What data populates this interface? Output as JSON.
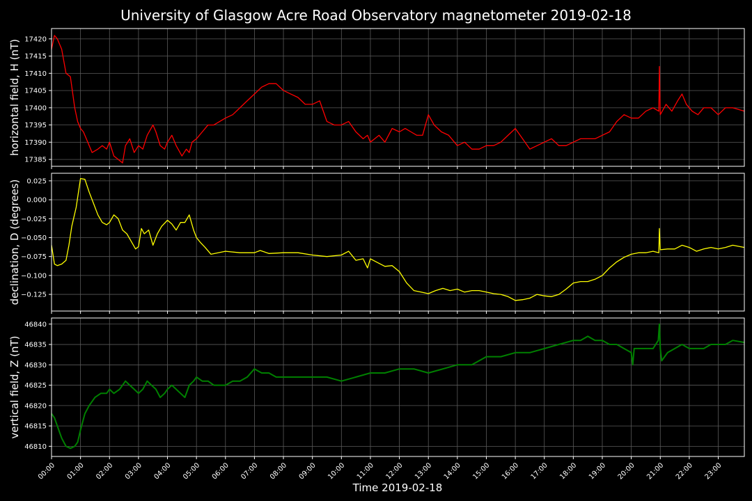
{
  "chart_data": {
    "type": "line",
    "title": "University of Glasgow Acre Road Observatory magnetometer 2019-02-18",
    "xlabel": "Time 2019-02-18",
    "x_ticks": [
      "00:00",
      "01:00",
      "02:00",
      "03:00",
      "04:00",
      "05:00",
      "06:00",
      "07:00",
      "08:00",
      "09:00",
      "10:00",
      "11:00",
      "12:00",
      "13:00",
      "14:00",
      "15:00",
      "16:00",
      "17:00",
      "18:00",
      "19:00",
      "20:00",
      "21:00",
      "22:00",
      "23:00"
    ],
    "xlim_hours": [
      0,
      23.9
    ],
    "grid": true,
    "panels": [
      {
        "ylabel": "horizontal field, H (nT)",
        "color": "#ff0000",
        "ylim": [
          17383,
          17423
        ],
        "yticks": [
          17385,
          17390,
          17395,
          17400,
          17405,
          17410,
          17415,
          17420
        ],
        "ytick_labels": [
          "17385",
          "17390",
          "17395",
          "17400",
          "17405",
          "17410",
          "17415",
          "17420"
        ],
        "x": [
          0,
          0.1,
          0.2,
          0.35,
          0.5,
          0.65,
          0.8,
          0.9,
          1.0,
          1.1,
          1.25,
          1.4,
          1.6,
          1.75,
          1.9,
          2.0,
          2.15,
          2.3,
          2.45,
          2.55,
          2.7,
          2.85,
          3.0,
          3.15,
          3.3,
          3.5,
          3.6,
          3.75,
          3.9,
          4.0,
          4.15,
          4.3,
          4.5,
          4.65,
          4.75,
          4.85,
          5.0,
          5.2,
          5.4,
          5.6,
          5.8,
          6.0,
          6.25,
          6.5,
          6.75,
          7.0,
          7.25,
          7.5,
          7.75,
          8.0,
          8.25,
          8.5,
          8.75,
          9.0,
          9.25,
          9.5,
          9.75,
          10.0,
          10.25,
          10.5,
          10.75,
          10.9,
          11.0,
          11.15,
          11.3,
          11.5,
          11.75,
          12.0,
          12.2,
          12.4,
          12.6,
          12.8,
          13.0,
          13.2,
          13.45,
          13.7,
          14.0,
          14.25,
          14.5,
          14.75,
          15.0,
          15.25,
          15.5,
          15.75,
          16.0,
          16.25,
          16.5,
          16.75,
          17.0,
          17.25,
          17.5,
          17.75,
          18.0,
          18.25,
          18.5,
          18.75,
          19.0,
          19.25,
          19.5,
          19.75,
          20.0,
          20.25,
          20.5,
          20.75,
          20.95,
          20.97,
          21.0,
          21.2,
          21.4,
          21.6,
          21.75,
          21.9,
          22.1,
          22.3,
          22.5,
          22.75,
          23.0,
          23.25,
          23.5,
          23.9
        ],
        "values": [
          17417,
          17421,
          17420,
          17417,
          17410,
          17409,
          17400,
          17396,
          17394,
          17393,
          17390,
          17387,
          17388,
          17389,
          17388,
          17390,
          17386,
          17385,
          17384,
          17389,
          17391,
          17387,
          17389,
          17388,
          17392,
          17395,
          17393,
          17389,
          17388,
          17390,
          17392,
          17389,
          17386,
          17388,
          17387,
          17390,
          17391,
          17393,
          17395,
          17395,
          17396,
          17397,
          17398,
          17400,
          17402,
          17404,
          17406,
          17407,
          17407,
          17405,
          17404,
          17403,
          17401,
          17401,
          17402,
          17396,
          17395,
          17395,
          17396,
          17393,
          17391,
          17392,
          17390,
          17391,
          17392,
          17390,
          17394,
          17393,
          17394,
          17393,
          17392,
          17392,
          17398,
          17395,
          17393,
          17392,
          17389,
          17390,
          17388,
          17388,
          17389,
          17389,
          17390,
          17392,
          17394,
          17391,
          17388,
          17389,
          17390,
          17391,
          17389,
          17389,
          17390,
          17391,
          17391,
          17391,
          17392,
          17393,
          17396,
          17398,
          17397,
          17397,
          17399,
          17400,
          17399,
          17412,
          17398,
          17401,
          17399,
          17402,
          17404,
          17401,
          17399,
          17398,
          17400,
          17400,
          17398,
          17400,
          17400,
          17399
        ]
      },
      {
        "ylabel": "declination, D (degrees)",
        "color": "#ffff00",
        "ylim": [
          -0.147,
          0.035
        ],
        "yticks": [
          -0.125,
          -0.1,
          -0.075,
          -0.05,
          -0.025,
          0.0,
          0.025
        ],
        "ytick_labels": [
          "−0.125",
          "−0.100",
          "−0.075",
          "−0.050",
          "−0.025",
          "0.000",
          "0.025"
        ],
        "x": [
          0,
          0.1,
          0.2,
          0.35,
          0.5,
          0.6,
          0.7,
          0.85,
          1.0,
          1.15,
          1.3,
          1.45,
          1.6,
          1.75,
          1.9,
          2.0,
          2.15,
          2.3,
          2.45,
          2.6,
          2.75,
          2.9,
          3.0,
          3.1,
          3.2,
          3.35,
          3.5,
          3.65,
          3.8,
          4.0,
          4.15,
          4.3,
          4.45,
          4.6,
          4.75,
          4.9,
          5.0,
          5.15,
          5.3,
          5.5,
          5.75,
          6.0,
          6.5,
          7.0,
          7.2,
          7.5,
          8.0,
          8.5,
          9.0,
          9.5,
          10.0,
          10.25,
          10.5,
          10.75,
          10.9,
          11.0,
          11.25,
          11.5,
          11.75,
          12.0,
          12.25,
          12.5,
          12.75,
          13.0,
          13.25,
          13.5,
          13.75,
          14.0,
          14.25,
          14.5,
          14.75,
          15.0,
          15.25,
          15.5,
          15.75,
          16.0,
          16.25,
          16.5,
          16.75,
          17.0,
          17.25,
          17.5,
          17.75,
          18.0,
          18.25,
          18.5,
          18.75,
          19.0,
          19.25,
          19.5,
          19.75,
          20.0,
          20.25,
          20.5,
          20.75,
          20.95,
          20.97,
          21.0,
          21.25,
          21.5,
          21.75,
          22.0,
          22.25,
          22.5,
          22.75,
          23.0,
          23.25,
          23.5,
          23.9
        ],
        "values": [
          -0.06,
          -0.085,
          -0.087,
          -0.085,
          -0.08,
          -0.06,
          -0.035,
          -0.01,
          0.028,
          0.027,
          0.01,
          -0.005,
          -0.02,
          -0.03,
          -0.033,
          -0.03,
          -0.02,
          -0.025,
          -0.04,
          -0.045,
          -0.055,
          -0.065,
          -0.062,
          -0.038,
          -0.045,
          -0.04,
          -0.06,
          -0.045,
          -0.035,
          -0.027,
          -0.032,
          -0.04,
          -0.03,
          -0.03,
          -0.02,
          -0.04,
          -0.05,
          -0.057,
          -0.063,
          -0.072,
          -0.07,
          -0.068,
          -0.07,
          -0.07,
          -0.067,
          -0.071,
          -0.07,
          -0.07,
          -0.073,
          -0.075,
          -0.073,
          -0.068,
          -0.08,
          -0.078,
          -0.09,
          -0.078,
          -0.083,
          -0.088,
          -0.087,
          -0.095,
          -0.11,
          -0.12,
          -0.122,
          -0.124,
          -0.12,
          -0.117,
          -0.12,
          -0.118,
          -0.122,
          -0.12,
          -0.12,
          -0.122,
          -0.124,
          -0.125,
          -0.128,
          -0.133,
          -0.132,
          -0.13,
          -0.125,
          -0.127,
          -0.128,
          -0.125,
          -0.118,
          -0.11,
          -0.108,
          -0.108,
          -0.105,
          -0.1,
          -0.09,
          -0.082,
          -0.076,
          -0.072,
          -0.07,
          -0.07,
          -0.068,
          -0.07,
          -0.038,
          -0.066,
          -0.065,
          -0.065,
          -0.06,
          -0.063,
          -0.068,
          -0.065,
          -0.063,
          -0.065,
          -0.063,
          -0.06,
          -0.063
        ]
      },
      {
        "ylabel": "vertical field, Z (nT)",
        "color": "#008000",
        "ylim": [
          46807.5,
          46841.5
        ],
        "yticks": [
          46810,
          46815,
          46820,
          46825,
          46830,
          46835,
          46840
        ],
        "ytick_labels": [
          "46810",
          "46815",
          "46820",
          "46825",
          "46830",
          "46835",
          "46840"
        ],
        "x": [
          0,
          0.1,
          0.2,
          0.35,
          0.5,
          0.65,
          0.8,
          0.9,
          1.0,
          1.15,
          1.3,
          1.5,
          1.7,
          1.9,
          2.0,
          2.15,
          2.35,
          2.55,
          2.7,
          2.85,
          3.0,
          3.15,
          3.3,
          3.45,
          3.6,
          3.75,
          3.9,
          4.0,
          4.15,
          4.3,
          4.45,
          4.6,
          4.75,
          4.9,
          5.0,
          5.2,
          5.4,
          5.6,
          5.8,
          6.0,
          6.25,
          6.5,
          6.75,
          7.0,
          7.25,
          7.5,
          7.75,
          8.0,
          8.5,
          9.0,
          9.5,
          10.0,
          10.5,
          11.0,
          11.5,
          12.0,
          12.5,
          13.0,
          13.5,
          14.0,
          14.5,
          15.0,
          15.5,
          16.0,
          16.5,
          17.0,
          17.5,
          18.0,
          18.25,
          18.5,
          18.75,
          19.0,
          19.25,
          19.5,
          19.75,
          20.0,
          20.05,
          20.1,
          20.25,
          20.5,
          20.75,
          20.93,
          20.97,
          21.0,
          21.05,
          21.25,
          21.5,
          21.75,
          22.0,
          22.25,
          22.5,
          22.75,
          23.0,
          23.25,
          23.5,
          23.9
        ],
        "values": [
          46818,
          46817,
          46815,
          46812,
          46810,
          46809.5,
          46810,
          46811,
          46814,
          46818,
          46820,
          46822,
          46823,
          46823,
          46824,
          46823,
          46824,
          46826,
          46825,
          46824,
          46823,
          46824,
          46826,
          46825,
          46824,
          46822,
          46823,
          46824,
          46825,
          46824,
          46823,
          46822,
          46825,
          46826,
          46827,
          46826,
          46826,
          46825,
          46825,
          46825,
          46826,
          46826,
          46827,
          46829,
          46828,
          46828,
          46827,
          46827,
          46827,
          46827,
          46827,
          46826,
          46827,
          46828,
          46828,
          46829,
          46829,
          46828,
          46829,
          46830,
          46830,
          46832,
          46832,
          46833,
          46833,
          46834,
          46835,
          46836,
          46836,
          46837,
          46836,
          46836,
          46835,
          46835,
          46834,
          46833,
          46830,
          46834,
          46834,
          46834,
          46834,
          46836,
          46840,
          46834,
          46831,
          46833,
          46834,
          46835,
          46834,
          46834,
          46834,
          46835,
          46835,
          46835,
          46836,
          46835.5
        ]
      }
    ]
  }
}
